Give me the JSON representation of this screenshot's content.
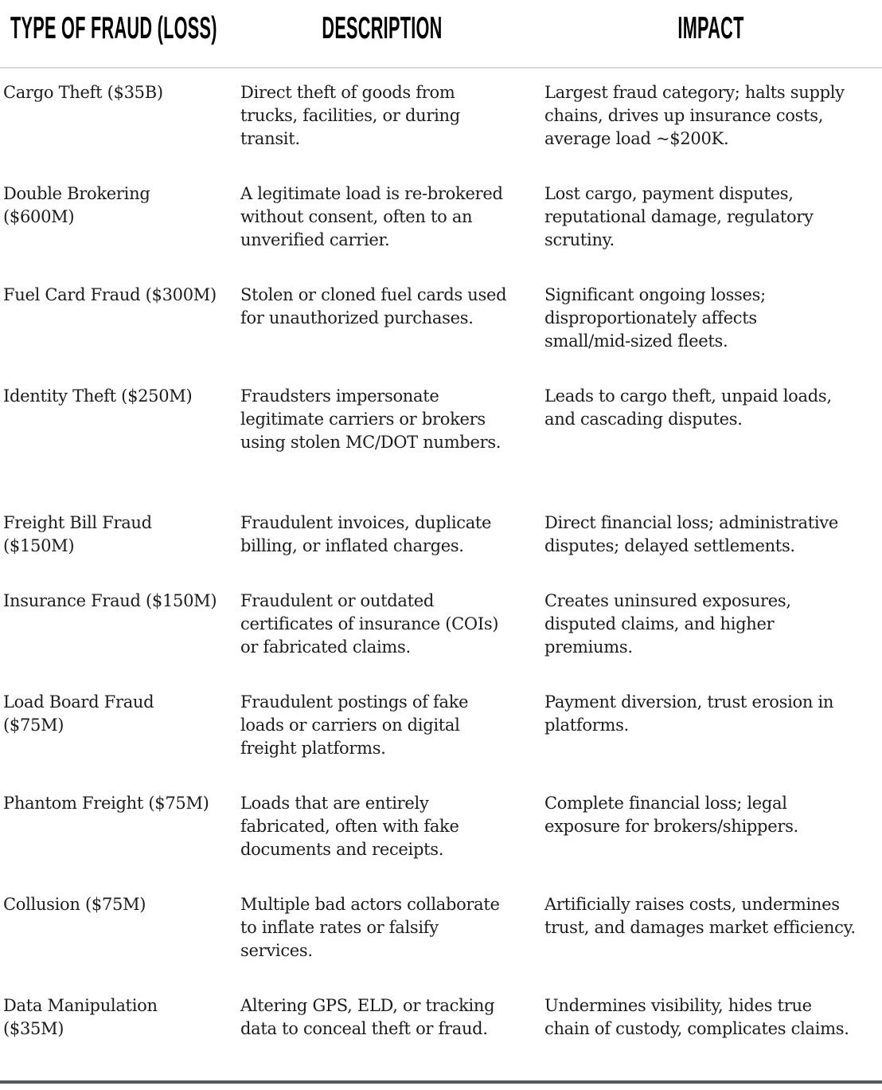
{
  "table": {
    "headers": [
      "TYPE OF FRAUD (LOSS)",
      "DESCRIPTION",
      "IMPACT"
    ],
    "rows": [
      {
        "type": "Cargo Theft ($35B)",
        "description": "Direct theft of goods from\ntrucks, facilities, or during\ntransit.",
        "impact": "Largest fraud category; halts supply\nchains, drives up insurance costs,\naverage load ~$200K."
      },
      {
        "type": "Double Brokering\n($600M)",
        "description": "A legitimate load is re-brokered\nwithout consent, often to an\nunverified carrier.",
        "impact": "Lost cargo, payment disputes,\nreputational damage, regulatory\nscrutiny."
      },
      {
        "type": "Fuel Card Fraud ($300M)",
        "description": "Stolen or cloned fuel cards used\nfor unauthorized purchases.",
        "impact": "Significant ongoing losses;\ndisproportionately affects\nsmall/mid-sized fleets."
      },
      {
        "type": "Identity Theft ($250M)",
        "description": "Fraudsters impersonate\nlegitimate carriers or brokers\nusing stolen MC/DOT numbers.",
        "impact": "Leads to cargo theft, unpaid loads,\nand cascading disputes."
      },
      {
        "type": "Freight Bill Fraud\n($150M)",
        "description": "Fraudulent invoices, duplicate\nbilling, or inflated charges.",
        "impact": "Direct financial loss; administrative\ndisputes; delayed settlements."
      },
      {
        "type": "Insurance Fraud ($150M)",
        "description": "Fraudulent or outdated\ncertificates of insurance (COIs)\nor fabricated claims.",
        "impact": "Creates uninsured exposures,\ndisputed claims, and higher\npremiums."
      },
      {
        "type": "Load Board Fraud\n($75M)",
        "description": "Fraudulent postings of fake\nloads or carriers on digital\nfreight platforms.",
        "impact": "Payment diversion, trust erosion in\nplatforms."
      },
      {
        "type": "Phantom Freight ($75M)",
        "description": "Loads that are entirely\nfabricated, often with fake\ndocuments and receipts.",
        "impact": "Complete financial loss; legal\nexposure for brokers/shippers."
      },
      {
        "type": "Collusion ($75M)",
        "description": "Multiple bad actors collaborate\nto inflate rates or falsify\nservices.",
        "impact": "Artificially raises costs, undermines\ntrust, and damages market efficiency."
      },
      {
        "type": "Data Manipulation\n($35M)",
        "description": "Altering GPS, ELD, or tracking\ndata to conceal theft or fraud.",
        "impact": "Undermines visibility, hides true\nchain of custody, complicates claims."
      }
    ]
  },
  "colors": {
    "text": "#1c1c1c",
    "header_text": "#000000",
    "header_divider": "#d8d8d8",
    "bottom_rule": "#58595b"
  }
}
